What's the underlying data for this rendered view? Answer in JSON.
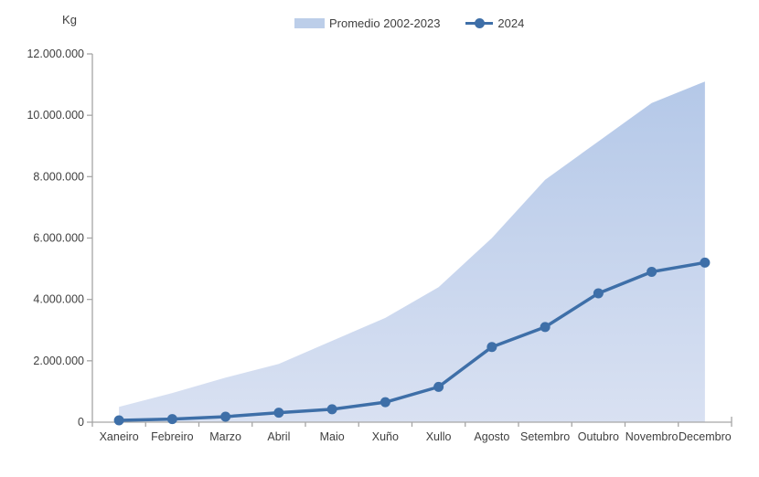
{
  "y_axis_title": "Kg",
  "legend": [
    {
      "label": "Promedio 2002-2023",
      "type": "area"
    },
    {
      "label": "2024",
      "type": "line"
    }
  ],
  "colors": {
    "line": "#3e6fa8",
    "area_gradient_top": "#b4c8e8",
    "area_gradient_bottom": "#d9e1f2",
    "legend_area_swatch": "#bccee9",
    "axis": "#a6a6a6",
    "text": "#404040"
  },
  "chart_data": {
    "type": "area",
    "title": "",
    "ylabel": "Kg",
    "xlabel": "",
    "ylim": [
      0,
      12000000
    ],
    "ytick_step": 2000000,
    "grid": false,
    "legend_position": "top",
    "number_format": "thousands-dot",
    "categories": [
      "Xaneiro",
      "Febreiro",
      "Marzo",
      "Abril",
      "Maio",
      "Xuño",
      "Xullo",
      "Agosto",
      "Setembro",
      "Outubro",
      "Novembro",
      "Decembro"
    ],
    "series": [
      {
        "name": "Promedio 2002-2023",
        "type": "area",
        "values": [
          500000,
          950000,
          1450000,
          1900000,
          2650000,
          3400000,
          4400000,
          6000000,
          7900000,
          9150000,
          10400000,
          11100000
        ]
      },
      {
        "name": "2024",
        "type": "line",
        "values": [
          60000,
          100000,
          180000,
          310000,
          420000,
          650000,
          1150000,
          2450000,
          3100000,
          4200000,
          4900000,
          5200000
        ]
      }
    ]
  }
}
